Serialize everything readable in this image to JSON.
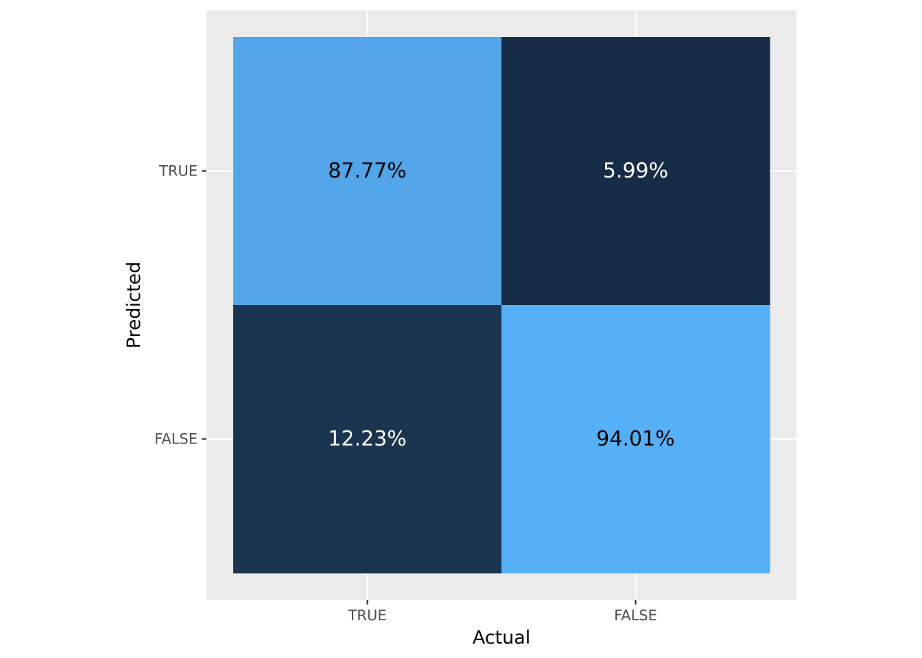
{
  "chart_data": {
    "type": "heatmap",
    "title": "",
    "xlabel": "Actual",
    "ylabel": "Predicted",
    "x_categories": [
      "TRUE",
      "FALSE"
    ],
    "y_categories": [
      "TRUE",
      "FALSE"
    ],
    "cells": [
      {
        "actual": "TRUE",
        "predicted": "TRUE",
        "value": 87.77,
        "label": "87.77%",
        "fill": "#51a5e8",
        "text_color": "#000000"
      },
      {
        "actual": "FALSE",
        "predicted": "TRUE",
        "value": 5.99,
        "label": "5.99%",
        "fill": "#172c46",
        "text_color": "#ffffff"
      },
      {
        "actual": "TRUE",
        "predicted": "FALSE",
        "value": 12.23,
        "label": "12.23%",
        "fill": "#1b344f",
        "text_color": "#ffffff"
      },
      {
        "actual": "FALSE",
        "predicted": "FALSE",
        "value": 94.01,
        "label": "94.01%",
        "fill": "#55b0f7",
        "text_color": "#000000"
      }
    ],
    "legend": "none",
    "grid": true,
    "colors": {
      "panel_background": "#ebebeb",
      "grid": "#ffffff",
      "tick": "#333333"
    }
  }
}
